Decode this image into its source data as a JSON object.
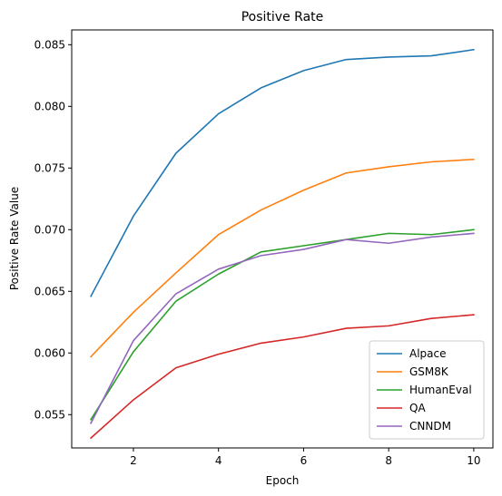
{
  "chart_data": {
    "type": "line",
    "title": "Positive Rate",
    "xlabel": "Epoch",
    "ylabel": "Positive Rate Value",
    "x": [
      1,
      2,
      3,
      4,
      5,
      6,
      7,
      8,
      9,
      10
    ],
    "xlim": [
      0.55,
      10.45
    ],
    "ylim": [
      0.0523,
      0.0862
    ],
    "xticks": [
      2,
      4,
      6,
      8,
      10
    ],
    "yticks": [
      0.055,
      0.06,
      0.065,
      0.07,
      0.075,
      0.08,
      0.085
    ],
    "ytick_labels": [
      "0.055",
      "0.060",
      "0.065",
      "0.070",
      "0.075",
      "0.080",
      "0.085"
    ],
    "grid": false,
    "legend_position": "lower-right",
    "series": [
      {
        "name": "Alpace",
        "color": "#1f77b4",
        "values": [
          0.0646,
          0.0711,
          0.0762,
          0.0794,
          0.0815,
          0.0829,
          0.0838,
          0.084,
          0.0841,
          0.0846
        ]
      },
      {
        "name": "GSM8K",
        "color": "#ff7f0e",
        "values": [
          0.0597,
          0.0633,
          0.0665,
          0.0696,
          0.0716,
          0.0732,
          0.0746,
          0.0751,
          0.0755,
          0.0757
        ]
      },
      {
        "name": "HumanEval",
        "color": "#2ca02c",
        "values": [
          0.0546,
          0.0601,
          0.0642,
          0.0664,
          0.0682,
          0.0687,
          0.0692,
          0.0697,
          0.0696,
          0.07
        ]
      },
      {
        "name": "QA",
        "color": "#d62728",
        "values": [
          0.0531,
          0.0562,
          0.0588,
          0.0599,
          0.0608,
          0.0613,
          0.062,
          0.0622,
          0.0628,
          0.0631
        ]
      },
      {
        "name": "CNNDM",
        "color": "#9467bd",
        "values": [
          0.0543,
          0.061,
          0.0648,
          0.0668,
          0.0679,
          0.0684,
          0.0692,
          0.0689,
          0.0694,
          0.0697
        ]
      }
    ]
  }
}
